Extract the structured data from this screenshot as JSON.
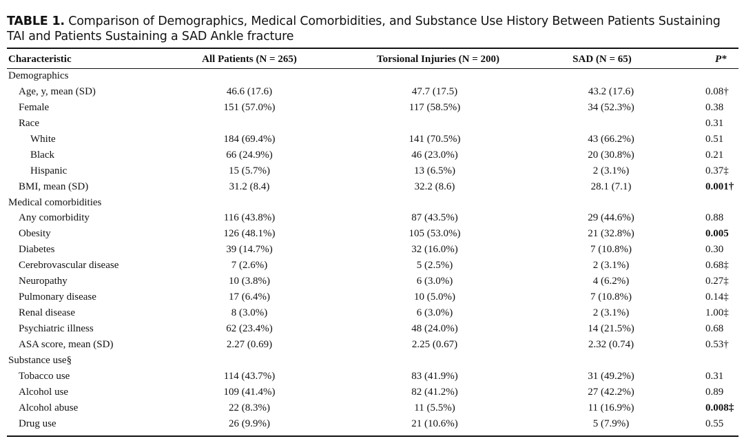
{
  "caption": {
    "label": "TABLE 1.",
    "text": "Comparison of Demographics, Medical Comorbidities, and Substance Use History Between Patients Sustaining TAI and Patients Sustaining a SAD Ankle fracture"
  },
  "table": {
    "headers": [
      "Characteristic",
      "All Patients (N = 265)",
      "Torsional Injuries (N = 200)",
      "SAD (N = 65)",
      "P*"
    ],
    "rows": [
      {
        "label": "Demographics",
        "indent": 0,
        "all": "",
        "tors": "",
        "sad": "",
        "p": "",
        "p_bold": false
      },
      {
        "label": "Age, y, mean (SD)",
        "indent": 1,
        "all": "46.6 (17.6)",
        "tors": "47.7 (17.5)",
        "sad": "43.2 (17.6)",
        "p": "0.08†",
        "p_bold": false
      },
      {
        "label": "Female",
        "indent": 1,
        "all": "151 (57.0%)",
        "tors": "117 (58.5%)",
        "sad": "34 (52.3%)",
        "p": "0.38",
        "p_bold": false
      },
      {
        "label": "Race",
        "indent": 1,
        "all": "",
        "tors": "",
        "sad": "",
        "p": "0.31",
        "p_bold": false
      },
      {
        "label": "White",
        "indent": 2,
        "all": "184 (69.4%)",
        "tors": "141 (70.5%)",
        "sad": "43 (66.2%)",
        "p": "0.51",
        "p_bold": false
      },
      {
        "label": "Black",
        "indent": 2,
        "all": "66 (24.9%)",
        "tors": "46 (23.0%)",
        "sad": "20 (30.8%)",
        "p": "0.21",
        "p_bold": false
      },
      {
        "label": "Hispanic",
        "indent": 2,
        "all": "15 (5.7%)",
        "tors": "13 (6.5%)",
        "sad": "2 (3.1%)",
        "p": "0.37‡",
        "p_bold": false
      },
      {
        "label": "BMI, mean (SD)",
        "indent": 1,
        "all": "31.2 (8.4)",
        "tors": "32.2 (8.6)",
        "sad": "28.1 (7.1)",
        "p": "0.001†",
        "p_bold": true
      },
      {
        "label": "Medical comorbidities",
        "indent": 0,
        "all": "",
        "tors": "",
        "sad": "",
        "p": "",
        "p_bold": false
      },
      {
        "label": "Any comorbidity",
        "indent": 1,
        "all": "116 (43.8%)",
        "tors": "87 (43.5%)",
        "sad": "29 (44.6%)",
        "p": "0.88",
        "p_bold": false
      },
      {
        "label": "Obesity",
        "indent": 1,
        "all": "126 (48.1%)",
        "tors": "105 (53.0%)",
        "sad": "21 (32.8%)",
        "p": "0.005",
        "p_bold": true
      },
      {
        "label": "Diabetes",
        "indent": 1,
        "all": "39 (14.7%)",
        "tors": "32 (16.0%)",
        "sad": "7 (10.8%)",
        "p": "0.30",
        "p_bold": false
      },
      {
        "label": "Cerebrovascular disease",
        "indent": 1,
        "all": "7 (2.6%)",
        "tors": "5 (2.5%)",
        "sad": "2 (3.1%)",
        "p": "0.68‡",
        "p_bold": false
      },
      {
        "label": "Neuropathy",
        "indent": 1,
        "all": "10 (3.8%)",
        "tors": "6 (3.0%)",
        "sad": "4 (6.2%)",
        "p": "0.27‡",
        "p_bold": false
      },
      {
        "label": "Pulmonary disease",
        "indent": 1,
        "all": "17 (6.4%)",
        "tors": "10 (5.0%)",
        "sad": "7 (10.8%)",
        "p": "0.14‡",
        "p_bold": false
      },
      {
        "label": "Renal disease",
        "indent": 1,
        "all": "8 (3.0%)",
        "tors": "6 (3.0%)",
        "sad": "2 (3.1%)",
        "p": "1.00‡",
        "p_bold": false
      },
      {
        "label": "Psychiatric illness",
        "indent": 1,
        "all": "62 (23.4%)",
        "tors": "48 (24.0%)",
        "sad": "14 (21.5%)",
        "p": "0.68",
        "p_bold": false
      },
      {
        "label": "ASA score, mean (SD)",
        "indent": 1,
        "all": "2.27 (0.69)",
        "tors": "2.25 (0.67)",
        "sad": "2.32 (0.74)",
        "p": "0.53†",
        "p_bold": false
      },
      {
        "label": "Substance use§",
        "indent": 0,
        "all": "",
        "tors": "",
        "sad": "",
        "p": "",
        "p_bold": false
      },
      {
        "label": "Tobacco use",
        "indent": 1,
        "all": "114 (43.7%)",
        "tors": "83 (41.9%)",
        "sad": "31 (49.2%)",
        "p": "0.31",
        "p_bold": false
      },
      {
        "label": "Alcohol use",
        "indent": 1,
        "all": "109 (41.4%)",
        "tors": "82 (41.2%)",
        "sad": "27 (42.2%)",
        "p": "0.89",
        "p_bold": false
      },
      {
        "label": "Alcohol abuse",
        "indent": 1,
        "all": "22 (8.3%)",
        "tors": "11 (5.5%)",
        "sad": "11 (16.9%)",
        "p": "0.008‡",
        "p_bold": true
      },
      {
        "label": "Drug use",
        "indent": 1,
        "all": "26 (9.9%)",
        "tors": "21 (10.6%)",
        "sad": "5 (7.9%)",
        "p": "0.55",
        "p_bold": false
      }
    ]
  }
}
